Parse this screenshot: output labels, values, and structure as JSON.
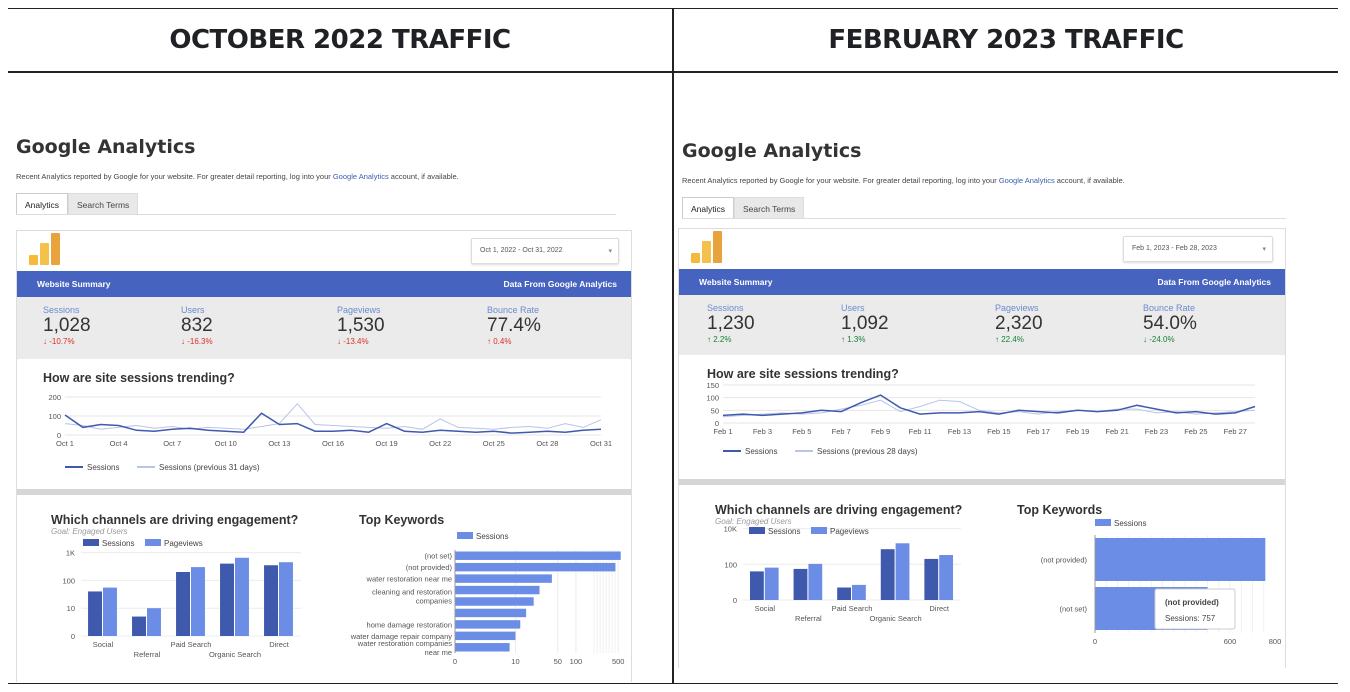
{
  "headers": {
    "left": "OCTOBER 2022 TRAFFIC",
    "right": "FEBRUARY 2023 TRAFFIC"
  },
  "common": {
    "app_title": "Google Analytics",
    "desc_before": "Recent Analytics reported by Google for your website. For greater detail reporting, log into your ",
    "desc_link": "Google Analytics",
    "desc_after": " account, if available.",
    "tab_analytics": "Analytics",
    "tab_search_terms": "Search Terms",
    "website_summary": "Website Summary",
    "data_from": "Data From Google Analytics",
    "label_sessions": "Sessions",
    "label_users": "Users",
    "label_pageviews": "Pageviews",
    "label_bounce": "Bounce Rate",
    "trend_title": "How are site sessions trending?",
    "legend_sessions": "Sessions",
    "channels_title": "Which channels are driving engagement?",
    "channels_goal": "Goal: Engaged Users",
    "legend_pageviews": "Pageviews",
    "keywords_title": "Top Keywords",
    "channel_cats": [
      "Social",
      "Referral",
      "Paid Search",
      "Organic Search",
      "Direct"
    ]
  },
  "colors": {
    "accent_blue": "#4663c0",
    "series_dark": "#3f5aad",
    "series_light": "#6b8de6",
    "prev_line": "#b8c4e8"
  },
  "oct": {
    "date_range": "Oct 1, 2022 - Oct 31, 2022",
    "sessions": "1,028",
    "sessions_delta": "↓ -10.7%",
    "users": "832",
    "users_delta": "↓ -16.3%",
    "pageviews": "1,530",
    "pageviews_delta": "↓ -13.4%",
    "bounce": "77.4%",
    "bounce_delta": "↑ 0.4%",
    "prev_legend": "Sessions (previous 31 days)",
    "y_ticks": [
      "200",
      "100",
      "0"
    ],
    "x_ticks": [
      "Oct 1",
      "Oct 4",
      "Oct 7",
      "Oct 10",
      "Oct 13",
      "Oct 16",
      "Oct 19",
      "Oct 22",
      "Oct 25",
      "Oct 28",
      "Oct 31"
    ],
    "channel_y_ticks": [
      "1K",
      "100",
      "10",
      "0"
    ],
    "keyword_x_ticks": [
      "0",
      "10",
      "50",
      "100",
      "500"
    ],
    "keywords": [
      "(not set)",
      "(not provided)",
      "water restoration near me",
      "cleaning and restoration companies",
      "home damage restoration",
      "water damage repair company",
      "water restoration companies near me"
    ]
  },
  "feb": {
    "date_range": "Feb 1, 2023 - Feb 28, 2023",
    "sessions": "1,230",
    "sessions_delta": "↑ 2.2%",
    "users": "1,092",
    "users_delta": "↑ 1.3%",
    "pageviews": "2,320",
    "pageviews_delta": "↑ 22.4%",
    "bounce": "54.0%",
    "bounce_delta": "↓ -24.0%",
    "prev_legend": "Sessions (previous 28 days)",
    "y_ticks": [
      "150",
      "100",
      "50",
      "0"
    ],
    "x_ticks": [
      "Feb 1",
      "Feb 3",
      "Feb 5",
      "Feb 7",
      "Feb 9",
      "Feb 11",
      "Feb 13",
      "Feb 15",
      "Feb 17",
      "Feb 19",
      "Feb 21",
      "Feb 23",
      "Feb 25",
      "Feb 27"
    ],
    "channel_y_ticks": [
      "10K",
      "100",
      "0"
    ],
    "keyword_x_ticks": [
      "0",
      "600",
      "800"
    ],
    "keywords": [
      "(not provided)",
      "(not set)"
    ],
    "tooltip_title": "(not provided)",
    "tooltip_value": "Sessions: 757"
  },
  "chart_data": [
    {
      "type": "line",
      "title": "How are site sessions trending? (Oct 2022)",
      "x": [
        "Oct 1",
        "Oct 2",
        "Oct 3",
        "Oct 4",
        "Oct 5",
        "Oct 6",
        "Oct 7",
        "Oct 8",
        "Oct 9",
        "Oct 10",
        "Oct 11",
        "Oct 12",
        "Oct 13",
        "Oct 14",
        "Oct 15",
        "Oct 16",
        "Oct 17",
        "Oct 18",
        "Oct 19",
        "Oct 20",
        "Oct 21",
        "Oct 22",
        "Oct 23",
        "Oct 24",
        "Oct 25",
        "Oct 26",
        "Oct 27",
        "Oct 28",
        "Oct 29",
        "Oct 30",
        "Oct 31"
      ],
      "ylim": [
        0,
        200
      ],
      "series": [
        {
          "name": "Sessions",
          "values": [
            105,
            40,
            55,
            50,
            25,
            20,
            30,
            35,
            25,
            20,
            15,
            115,
            55,
            60,
            20,
            20,
            25,
            15,
            60,
            20,
            15,
            25,
            20,
            15,
            20,
            10,
            15,
            20,
            15,
            25,
            30
          ]
        },
        {
          "name": "Sessions (previous 31 days)",
          "values": [
            60,
            50,
            30,
            40,
            50,
            35,
            45,
            30,
            40,
            35,
            30,
            45,
            60,
            165,
            55,
            50,
            45,
            40,
            35,
            45,
            30,
            85,
            40,
            35,
            30,
            40,
            45,
            35,
            60,
            40,
            80
          ]
        }
      ]
    },
    {
      "type": "line",
      "title": "How are site sessions trending? (Feb 2023)",
      "x": [
        "Feb 1",
        "Feb 2",
        "Feb 3",
        "Feb 4",
        "Feb 5",
        "Feb 6",
        "Feb 7",
        "Feb 8",
        "Feb 9",
        "Feb 10",
        "Feb 11",
        "Feb 12",
        "Feb 13",
        "Feb 14",
        "Feb 15",
        "Feb 16",
        "Feb 17",
        "Feb 18",
        "Feb 19",
        "Feb 20",
        "Feb 21",
        "Feb 22",
        "Feb 23",
        "Feb 24",
        "Feb 25",
        "Feb 26",
        "Feb 27",
        "Feb 28"
      ],
      "ylim": [
        0,
        150
      ],
      "series": [
        {
          "name": "Sessions",
          "values": [
            30,
            35,
            30,
            35,
            40,
            50,
            45,
            80,
            110,
            60,
            35,
            40,
            40,
            45,
            35,
            50,
            45,
            40,
            50,
            45,
            50,
            70,
            55,
            40,
            45,
            35,
            40,
            65
          ]
        },
        {
          "name": "Sessions (previous 28 days)",
          "values": [
            25,
            30,
            35,
            40,
            35,
            40,
            55,
            70,
            90,
            45,
            65,
            90,
            85,
            50,
            40,
            45,
            35,
            45,
            50,
            45,
            55,
            55,
            40,
            45,
            35,
            40,
            45,
            50
          ]
        }
      ]
    },
    {
      "type": "bar",
      "title": "Which channels are driving engagement? (Oct 2022)",
      "categories": [
        "Social",
        "Referral",
        "Paid Search",
        "Organic Search",
        "Direct"
      ],
      "yscale": "log",
      "series": [
        {
          "name": "Sessions",
          "values": [
            40,
            5,
            200,
            400,
            350
          ]
        },
        {
          "name": "Pageviews",
          "values": [
            55,
            10,
            300,
            650,
            450
          ]
        }
      ]
    },
    {
      "type": "bar",
      "title": "Which channels are driving engagement? (Feb 2023)",
      "categories": [
        "Social",
        "Referral",
        "Paid Search",
        "Organic Search",
        "Direct"
      ],
      "yscale": "log",
      "series": [
        {
          "name": "Sessions",
          "values": [
            40,
            55,
            5,
            700,
            200
          ]
        },
        {
          "name": "Pageviews",
          "values": [
            65,
            105,
            7,
            1500,
            330
          ]
        }
      ]
    },
    {
      "type": "bar",
      "orientation": "horizontal",
      "title": "Top Keywords (Oct 2022)",
      "categories": [
        "(not set)",
        "(not provided)",
        "water restoration near me",
        "",
        "cleaning and restoration companies",
        "",
        "home damage restoration",
        "water damage repair company",
        "water restoration companies near me"
      ],
      "xscale": "log",
      "series": [
        {
          "name": "Sessions",
          "values": [
            550,
            450,
            40,
            25,
            20,
            15,
            12,
            10,
            8
          ]
        }
      ]
    },
    {
      "type": "bar",
      "orientation": "horizontal",
      "title": "Top Keywords (Feb 2023)",
      "categories": [
        "(not provided)",
        "(not set)"
      ],
      "xlim": [
        0,
        800
      ],
      "series": [
        {
          "name": "Sessions",
          "values": [
            757,
            500
          ]
        }
      ]
    }
  ]
}
